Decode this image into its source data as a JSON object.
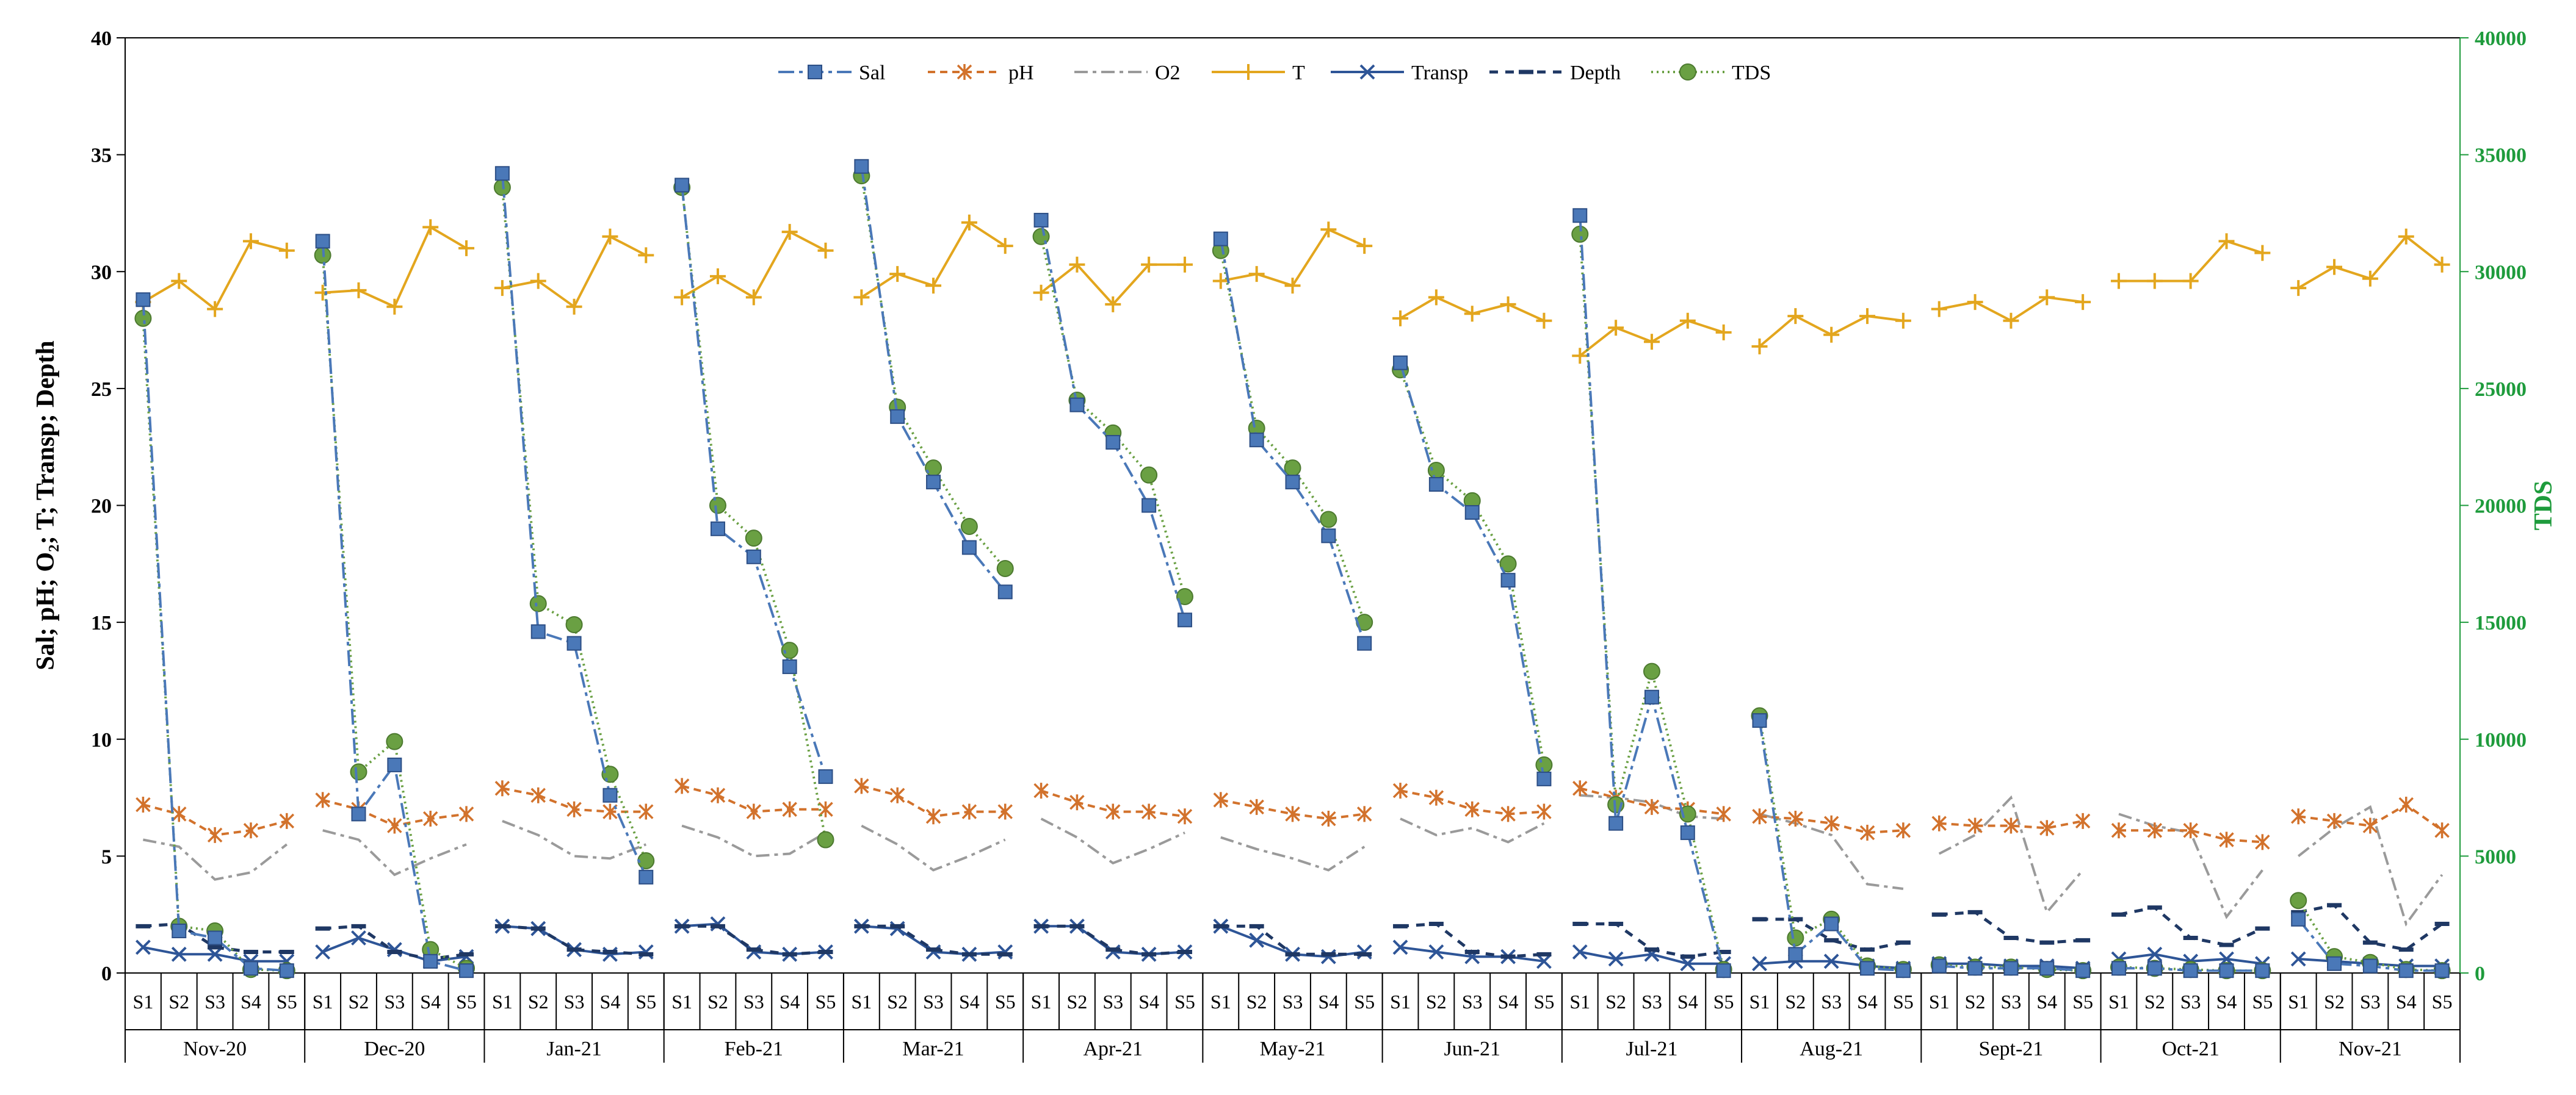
{
  "chart_data": {
    "type": "line",
    "title": "",
    "ylabel": "Sal; pH; O₂; T; Transp; Depth",
    "ylabel_sub": "2",
    "y2label": "TDS",
    "ylim": [
      0,
      40
    ],
    "y2lim": [
      0,
      40000
    ],
    "y_ticks": [
      "0",
      "5",
      "10",
      "15",
      "20",
      "25",
      "30",
      "35",
      "40"
    ],
    "y2_ticks": [
      "0",
      "5000",
      "10000",
      "15000",
      "20000",
      "25000",
      "30000",
      "35000",
      "40000"
    ],
    "stations": [
      "S1",
      "S2",
      "S3",
      "S4",
      "S5"
    ],
    "months": [
      "Nov-20",
      "Dec-20",
      "Jan-21",
      "Feb-21",
      "Mar-21",
      "Apr-21",
      "May-21",
      "Jun-21",
      "Jul-21",
      "Aug-21",
      "Sept-21",
      "Oct-21",
      "Nov-21"
    ],
    "legend": [
      "Sal",
      "pH",
      "O2",
      "T",
      "Transp",
      "Depth",
      "TDS"
    ],
    "legend_position": "top-center",
    "colors": {
      "Sal": "#4a78b8",
      "pH": "#d2722c",
      "O2": "#9a9a9a",
      "T": "#e3a61e",
      "Transp": "#2e5597",
      "Depth": "#1f3864",
      "TDS": "#6aa043",
      "axis_right": "#1e9b3c",
      "axis": "#000000"
    },
    "series": [
      {
        "name": "Sal",
        "axis": "left",
        "values": [
          [
            28.8,
            1.8,
            1.5,
            0.2,
            0.1
          ],
          [
            31.3,
            6.8,
            8.9,
            0.5,
            0.1
          ],
          [
            34.2,
            14.6,
            14.1,
            7.6,
            4.1
          ],
          [
            33.7,
            19.0,
            17.8,
            13.1,
            8.4
          ],
          [
            34.5,
            23.8,
            21.0,
            18.2,
            16.3
          ],
          [
            32.2,
            24.3,
            22.7,
            20.0,
            15.1
          ],
          [
            31.4,
            22.8,
            21.0,
            18.7,
            14.1
          ],
          [
            26.1,
            20.9,
            19.7,
            16.8,
            8.3
          ],
          [
            32.4,
            6.4,
            11.8,
            6.0,
            0.1
          ],
          [
            10.8,
            0.8,
            2.1,
            0.2,
            0.1
          ],
          [
            0.3,
            0.2,
            0.2,
            0.2,
            0.1
          ],
          [
            0.2,
            0.2,
            0.1,
            0.1,
            0.1
          ],
          [
            2.3,
            0.4,
            0.3,
            0.1,
            0.1
          ]
        ]
      },
      {
        "name": "pH",
        "axis": "left",
        "values": [
          [
            7.2,
            6.8,
            5.9,
            6.1,
            6.5
          ],
          [
            7.4,
            7.0,
            6.3,
            6.6,
            6.8
          ],
          [
            7.9,
            7.6,
            7.0,
            6.9,
            6.9
          ],
          [
            8.0,
            7.6,
            6.9,
            7.0,
            7.0
          ],
          [
            8.0,
            7.6,
            6.7,
            6.9,
            6.9
          ],
          [
            7.8,
            7.3,
            6.9,
            6.9,
            6.7
          ],
          [
            7.4,
            7.1,
            6.8,
            6.6,
            6.8
          ],
          [
            7.8,
            7.5,
            7.0,
            6.8,
            6.9
          ],
          [
            7.9,
            7.5,
            7.1,
            7.0,
            6.8
          ],
          [
            6.7,
            6.6,
            6.4,
            6.0,
            6.1
          ],
          [
            6.4,
            6.3,
            6.3,
            6.2,
            6.5
          ],
          [
            6.1,
            6.1,
            6.1,
            5.7,
            5.6
          ],
          [
            6.7,
            6.5,
            6.3,
            7.2,
            6.1
          ]
        ]
      },
      {
        "name": "O2",
        "axis": "left",
        "values": [
          [
            5.7,
            5.4,
            4.0,
            4.3,
            5.5
          ],
          [
            6.1,
            5.7,
            4.2,
            4.9,
            5.5
          ],
          [
            6.5,
            5.9,
            5.0,
            4.9,
            5.5
          ],
          [
            6.3,
            5.8,
            5.0,
            5.1,
            6.0
          ],
          [
            6.3,
            5.5,
            4.4,
            5.0,
            5.7
          ],
          [
            6.6,
            5.8,
            4.7,
            5.3,
            6.0
          ],
          [
            5.8,
            5.3,
            4.9,
            4.4,
            5.4
          ],
          [
            6.6,
            5.9,
            6.2,
            5.6,
            6.4
          ],
          [
            7.6,
            7.5,
            7.3,
            6.7,
            6.6
          ],
          [
            6.8,
            6.4,
            5.9,
            3.8,
            3.6
          ],
          [
            5.1,
            5.9,
            7.5,
            2.6,
            4.4
          ],
          [
            6.8,
            6.3,
            6.0,
            2.4,
            4.4
          ],
          [
            5.0,
            6.2,
            7.1,
            2.1,
            4.2
          ]
        ]
      },
      {
        "name": "T",
        "axis": "left",
        "values": [
          [
            28.7,
            29.6,
            28.4,
            31.3,
            30.9
          ],
          [
            29.1,
            29.2,
            28.5,
            31.9,
            31.0
          ],
          [
            29.3,
            29.6,
            28.5,
            31.5,
            30.7
          ],
          [
            28.9,
            29.8,
            28.9,
            31.7,
            30.9
          ],
          [
            28.9,
            29.9,
            29.4,
            32.1,
            31.1
          ],
          [
            29.1,
            30.3,
            28.6,
            30.3,
            30.3
          ],
          [
            29.6,
            29.9,
            29.4,
            31.8,
            31.1
          ],
          [
            28.0,
            28.9,
            28.2,
            28.6,
            27.9
          ],
          [
            26.4,
            27.6,
            27.0,
            27.9,
            27.4
          ],
          [
            26.8,
            28.1,
            27.3,
            28.1,
            27.9
          ],
          [
            28.4,
            28.7,
            27.9,
            28.9,
            28.7
          ],
          [
            29.6,
            29.6,
            29.6,
            31.3,
            30.8
          ],
          [
            29.3,
            30.2,
            29.7,
            31.5,
            30.3
          ]
        ]
      },
      {
        "name": "Transp",
        "axis": "left",
        "values": [
          [
            1.1,
            0.8,
            0.8,
            0.5,
            0.5
          ],
          [
            0.9,
            1.5,
            1.0,
            0.5,
            0.7
          ],
          [
            2.0,
            1.9,
            1.0,
            0.8,
            0.9
          ],
          [
            2.0,
            2.1,
            0.9,
            0.8,
            0.9
          ],
          [
            2.0,
            1.9,
            0.9,
            0.8,
            0.9
          ],
          [
            2.0,
            2.0,
            0.9,
            0.8,
            0.9
          ],
          [
            2.0,
            1.4,
            0.8,
            0.7,
            0.9
          ],
          [
            1.1,
            0.9,
            0.7,
            0.7,
            0.5
          ],
          [
            0.9,
            0.6,
            0.8,
            0.4,
            0.4
          ],
          [
            0.4,
            0.5,
            0.5,
            0.3,
            0.2
          ],
          [
            0.4,
            0.4,
            0.3,
            0.3,
            0.2
          ],
          [
            0.6,
            0.8,
            0.5,
            0.6,
            0.4
          ],
          [
            0.6,
            0.5,
            0.4,
            0.3,
            0.3
          ]
        ]
      },
      {
        "name": "Depth",
        "axis": "left",
        "values": [
          [
            2.0,
            2.1,
            1.1,
            0.9,
            0.9
          ],
          [
            1.9,
            2.0,
            0.9,
            0.6,
            0.8
          ],
          [
            2.0,
            1.9,
            1.0,
            0.9,
            0.8
          ],
          [
            2.0,
            2.0,
            1.0,
            0.8,
            0.9
          ],
          [
            2.0,
            2.0,
            1.0,
            0.8,
            0.8
          ],
          [
            2.0,
            2.0,
            1.0,
            0.8,
            0.9
          ],
          [
            2.0,
            2.0,
            0.8,
            0.8,
            0.8
          ],
          [
            2.0,
            2.1,
            0.9,
            0.7,
            0.8
          ],
          [
            2.1,
            2.1,
            1.0,
            0.7,
            0.9
          ],
          [
            2.3,
            2.3,
            1.4,
            1.0,
            1.3
          ],
          [
            2.5,
            2.6,
            1.5,
            1.3,
            1.4
          ],
          [
            2.5,
            2.8,
            1.5,
            1.2,
            1.9
          ],
          [
            2.6,
            2.9,
            1.3,
            1.0,
            2.1
          ]
        ]
      },
      {
        "name": "TDS",
        "axis": "right",
        "values": [
          [
            28000,
            2000,
            1800,
            150,
            100
          ],
          [
            30700,
            8600,
            9900,
            1000,
            200
          ],
          [
            33600,
            15800,
            14900,
            8500,
            4800
          ],
          [
            33600,
            20000,
            18600,
            13800,
            5700
          ],
          [
            34100,
            24200,
            21600,
            19100,
            17300
          ],
          [
            31500,
            24500,
            23100,
            21300,
            16100
          ],
          [
            30900,
            23300,
            21600,
            19400,
            15000
          ],
          [
            25800,
            21500,
            20200,
            17500,
            8900
          ],
          [
            31600,
            7200,
            12900,
            6800,
            150
          ],
          [
            11000,
            1500,
            2300,
            300,
            150
          ],
          [
            350,
            250,
            250,
            150,
            100
          ],
          [
            250,
            200,
            150,
            100,
            100
          ],
          [
            3100,
            700,
            450,
            150,
            100
          ]
        ]
      }
    ]
  }
}
